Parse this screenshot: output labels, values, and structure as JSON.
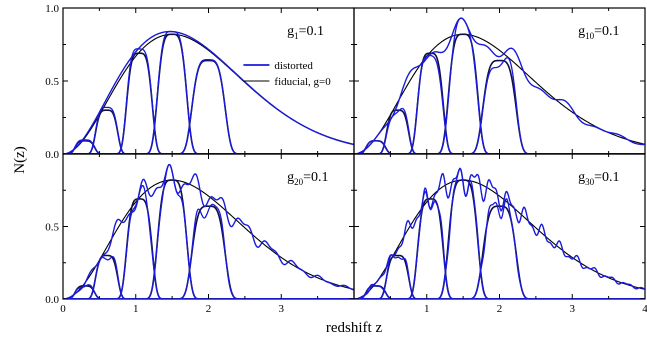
{
  "chart_data": {
    "type": "line",
    "xlabel": "redshift z",
    "ylabel": "N(z)",
    "xlim": [
      0,
      4
    ],
    "ylim": [
      0,
      1.0
    ],
    "x_ticks": [
      "0",
      "1",
      "2",
      "3",
      "4"
    ],
    "y_ticks": [
      "0.0",
      "0.5",
      "1.0"
    ],
    "legend": {
      "placement": "top-right of first panel",
      "entries": [
        {
          "label": "distorted",
          "color": "#1a1adc"
        },
        {
          "label": "fiducial, g=0",
          "color": "#000000"
        }
      ]
    },
    "fiducial": {
      "total": {
        "mean": 1.5,
        "amplitude": 0.82
      },
      "bins": [
        {
          "center": 0.3,
          "peak": 0.09
        },
        {
          "center": 0.6,
          "peak": 0.3
        },
        {
          "center": 1.05,
          "peak": 0.69
        },
        {
          "center": 1.5,
          "peak": 0.82
        },
        {
          "center": 2.0,
          "peak": 0.64
        }
      ]
    },
    "panels": [
      {
        "label_main": "g",
        "label_sub": "1",
        "label_value": "=0.1",
        "distortion_amplitude": 0.04,
        "distortion_frequency": 1
      },
      {
        "label_main": "g",
        "label_sub": "10",
        "label_value": "=0.1",
        "distortion_amplitude": 0.06,
        "distortion_frequency": 10
      },
      {
        "label_main": "g",
        "label_sub": "20",
        "label_value": "=0.1",
        "distortion_amplitude": 0.06,
        "distortion_frequency": 20
      },
      {
        "label_main": "g",
        "label_sub": "30",
        "label_value": "=0.1",
        "distortion_amplitude": 0.06,
        "distortion_frequency": 30
      }
    ]
  },
  "colors": {
    "distorted": "#1a1adc",
    "fiducial": "#000000",
    "bins": "#101040"
  }
}
